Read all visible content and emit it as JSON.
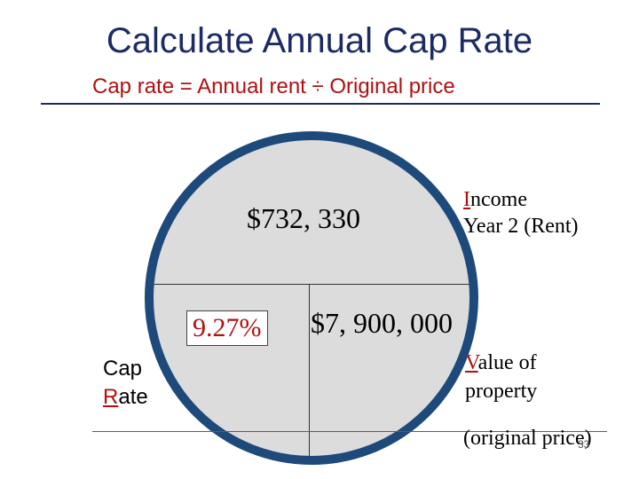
{
  "slide": {
    "title": "Calculate Annual Cap Rate",
    "subtitle": "Cap rate = Annual rent ÷ Original price"
  },
  "diagram": {
    "income_value": "$732, 330",
    "cap_rate_value": "9.27%",
    "property_value": "$7, 900, 000"
  },
  "labels": {
    "income": {
      "lead": "I",
      "rest": "ncome",
      "line2": "Year 2 (Rent)"
    },
    "value": {
      "lead": "V",
      "rest": "alue of",
      "line2": "property"
    },
    "original_price": "(original price)",
    "cap": {
      "line1": "Cap",
      "lead": "R",
      "rest": "ate"
    }
  },
  "page_number": "33",
  "colors": {
    "title": "#1c2a66",
    "accent_red": "#b01010",
    "circle_fill": "#dcdcdc",
    "circle_border": "#1d4a7a"
  }
}
